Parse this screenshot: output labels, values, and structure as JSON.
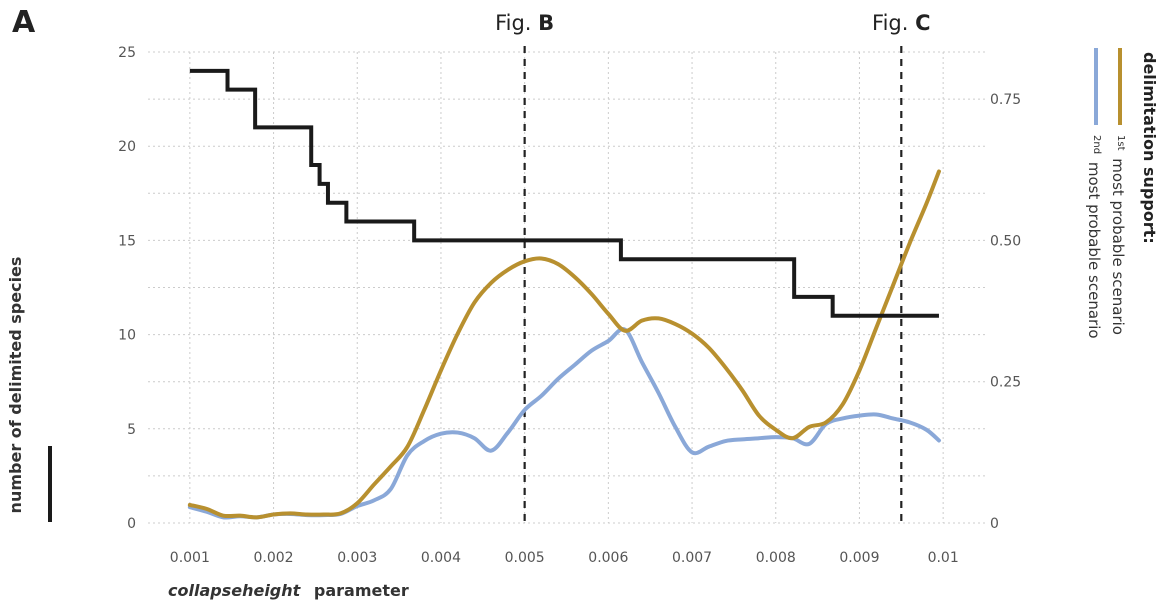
{
  "panel_letter": "A",
  "reference_lines": [
    {
      "x": 0.005,
      "label_prefix": "Fig.",
      "label_letter": "B"
    },
    {
      "x": 0.0095,
      "label_prefix": "Fig.",
      "label_letter": "C"
    }
  ],
  "xlabel_italic": "collapseheight",
  "xlabel_rest": "parameter",
  "ylabel_left": "number of delimited species",
  "legend": {
    "title": "delimitation support:",
    "entries": [
      {
        "sup": "1st",
        "text": "most probable scenario",
        "color": "#b8902f"
      },
      {
        "sup": "2nd",
        "text": "most probable scenario",
        "color": "#8aa8d8"
      }
    ]
  },
  "colors": {
    "species": "#1a1a1a",
    "first": "#b8902f",
    "second": "#8aa8d8",
    "grid": "#cccccc",
    "refline": "#222222"
  },
  "chart_data": {
    "type": "line",
    "x_ticks": [
      "0.001",
      "0.002",
      "0.003",
      "0.004",
      "0.005",
      "0.006",
      "0.007",
      "0.008",
      "0.009",
      "0.01"
    ],
    "x_tick_values": [
      0.001,
      0.002,
      0.003,
      0.004,
      0.005,
      0.006,
      0.007,
      0.008,
      0.009,
      0.01
    ],
    "xlim": [
      0.0005,
      0.0105
    ],
    "y_left_ticks": [
      "0",
      "5",
      "10",
      "15",
      "20",
      "25"
    ],
    "y_left_tick_values": [
      0,
      5,
      10,
      15,
      20,
      25
    ],
    "ylim_left": [
      0,
      25
    ],
    "y_right_ticks": [
      "0",
      "0.25",
      "0.50",
      "0.75"
    ],
    "y_right_tick_values": [
      0,
      0.25,
      0.5,
      0.75
    ],
    "ylim_right": [
      0,
      0.8333
    ],
    "grid": true,
    "species_series": {
      "axis": "left",
      "step": [
        [
          0.001,
          24
        ],
        [
          0.00145,
          23
        ],
        [
          0.00178,
          21
        ],
        [
          0.00245,
          19
        ],
        [
          0.00255,
          18
        ],
        [
          0.00265,
          17
        ],
        [
          0.00287,
          16
        ],
        [
          0.00368,
          15
        ],
        [
          0.00615,
          14
        ],
        [
          0.00822,
          12
        ],
        [
          0.00868,
          11
        ],
        [
          0.00995,
          11
        ]
      ]
    },
    "series": [
      {
        "axis": "right",
        "x": [
          0.001,
          0.0012,
          0.0014,
          0.0016,
          0.0018,
          0.002,
          0.0022,
          0.0024,
          0.0026,
          0.0028,
          0.003,
          0.0032,
          0.0034,
          0.0036,
          0.0038,
          0.004,
          0.0042,
          0.0044,
          0.0046,
          0.0048,
          0.005,
          0.0052,
          0.0054,
          0.0056,
          0.0058,
          0.006,
          0.0062,
          0.0064,
          0.0066,
          0.0068,
          0.007,
          0.0072,
          0.0074,
          0.0076,
          0.0078,
          0.008,
          0.0082,
          0.0084,
          0.0086,
          0.0088,
          0.009,
          0.0092,
          0.0094,
          0.0096,
          0.0098,
          0.00995
        ],
        "values": [
          0.032,
          0.025,
          0.013,
          0.013,
          0.01,
          0.015,
          0.017,
          0.015,
          0.015,
          0.017,
          0.035,
          0.068,
          0.1,
          0.135,
          0.2,
          0.27,
          0.335,
          0.39,
          0.425,
          0.448,
          0.463,
          0.468,
          0.458,
          0.435,
          0.405,
          0.37,
          0.34,
          0.358,
          0.362,
          0.352,
          0.335,
          0.31,
          0.275,
          0.235,
          0.19,
          0.165,
          0.15,
          0.17,
          0.178,
          0.21,
          0.27,
          0.345,
          0.42,
          0.495,
          0.565,
          0.622
        ]
      },
      {
        "axis": "right",
        "x": [
          0.001,
          0.0012,
          0.0014,
          0.0016,
          0.0018,
          0.002,
          0.0022,
          0.0024,
          0.0026,
          0.0028,
          0.003,
          0.0032,
          0.0034,
          0.0036,
          0.0038,
          0.004,
          0.0042,
          0.0044,
          0.0046,
          0.0048,
          0.005,
          0.0052,
          0.0054,
          0.0056,
          0.0058,
          0.006,
          0.0062,
          0.0064,
          0.0066,
          0.0068,
          0.007,
          0.0072,
          0.0074,
          0.0076,
          0.0078,
          0.008,
          0.0082,
          0.0084,
          0.0086,
          0.0088,
          0.009,
          0.0092,
          0.0094,
          0.0096,
          0.0098,
          0.00995
        ],
        "values": [
          0.028,
          0.02,
          0.01,
          0.012,
          0.01,
          0.015,
          0.016,
          0.014,
          0.014,
          0.016,
          0.03,
          0.04,
          0.06,
          0.12,
          0.145,
          0.158,
          0.16,
          0.15,
          0.128,
          0.16,
          0.2,
          0.225,
          0.255,
          0.28,
          0.305,
          0.322,
          0.342,
          0.285,
          0.23,
          0.17,
          0.125,
          0.135,
          0.145,
          0.148,
          0.15,
          0.152,
          0.15,
          0.14,
          0.175,
          0.185,
          0.19,
          0.192,
          0.185,
          0.178,
          0.165,
          0.146
        ]
      }
    ]
  }
}
